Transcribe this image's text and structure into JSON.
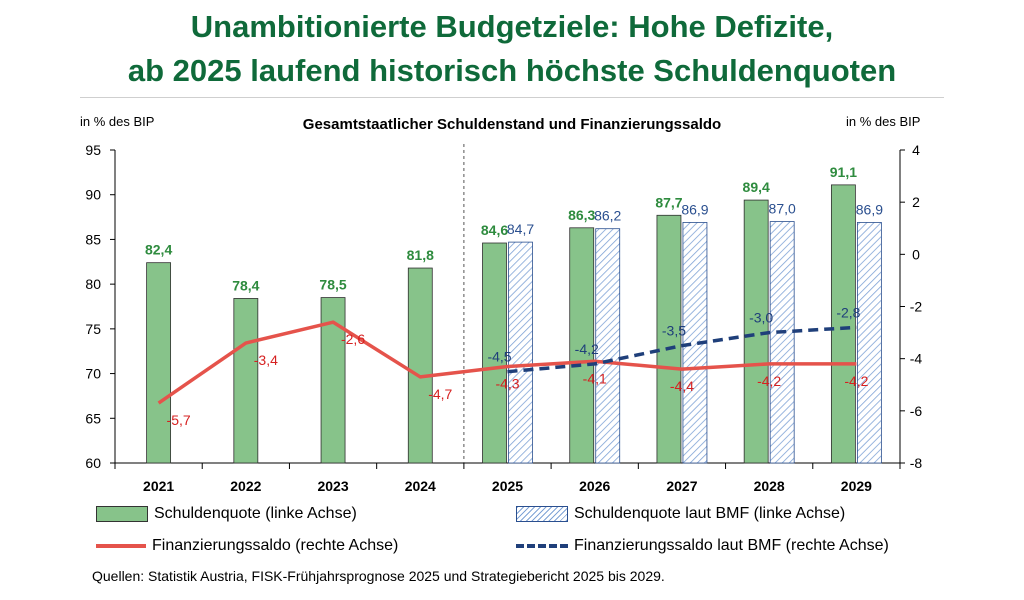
{
  "title": {
    "line1": "Unambitionierte Budgetziele: Hohe Defizite,",
    "line2": "ab 2025 laufend historisch höchste Schuldenquoten"
  },
  "left_axis_unit": "in % des BIP",
  "right_axis_unit": "in % des BIP",
  "legend": {
    "schuldenquote": "Schuldenquote (linke Achse)",
    "schuldenquote_bmf": "Schuldenquote laut BMF (linke Achse)",
    "saldo": "Finanzierungssaldo (rechte Achse)",
    "saldo_bmf": "Finanzierungssaldo laut BMF (rechte Achse)"
  },
  "source": "Quellen: Statistik Austria, FISK-Frühjahrsprognose 2025 und Strategiebericht 2025 bis 2029.",
  "colors": {
    "bar_green": "#87c38a",
    "bar_green_label": "#2e8b3e",
    "bmf_label": "#2a4f8f",
    "saldo_red": "#e5534b",
    "saldo_red_label": "#d62020",
    "saldo_bmf": "#1f3f7a"
  },
  "chart_data": {
    "type": "bar",
    "title": "Gesamtstaatlicher Schuldenstand und Finanzierungssaldo",
    "categories": [
      "2021",
      "2022",
      "2023",
      "2024",
      "2025",
      "2026",
      "2027",
      "2028",
      "2029"
    ],
    "left_axis": {
      "ylim": [
        60,
        95
      ],
      "ticks": [
        60,
        65,
        70,
        75,
        80,
        85,
        90,
        95
      ]
    },
    "right_axis": {
      "ylim": [
        -8,
        4
      ],
      "ticks": [
        -8,
        -6,
        -4,
        -2,
        0,
        2,
        4
      ]
    },
    "forecast_divider_between": [
      "2024",
      "2025"
    ],
    "grid": false,
    "series": [
      {
        "name": "Schuldenquote (linke Achse)",
        "kind": "bar",
        "axis": "left",
        "values": [
          82.4,
          78.4,
          78.5,
          81.8,
          84.6,
          86.3,
          87.7,
          89.4,
          91.1
        ],
        "labels": [
          "82,4",
          "78,4",
          "78,5",
          "81,8",
          "84,6",
          "86,3",
          "87,7",
          "89,4",
          "91,1"
        ]
      },
      {
        "name": "Schuldenquote laut BMF (linke Achse)",
        "kind": "bar-hatched",
        "axis": "left",
        "values": [
          null,
          null,
          null,
          null,
          84.7,
          86.2,
          86.9,
          87.0,
          86.9
        ],
        "labels": [
          null,
          null,
          null,
          null,
          "84,7",
          "86,2",
          "86,9",
          "87,0",
          "86,9"
        ]
      },
      {
        "name": "Finanzierungssaldo (rechte Achse)",
        "kind": "line",
        "axis": "right",
        "values": [
          -5.7,
          -3.4,
          -2.6,
          -4.7,
          -4.3,
          -4.1,
          -4.4,
          -4.2,
          -4.2
        ],
        "labels": [
          "-5,7",
          "-3,4",
          "-2,6",
          "-4,7",
          "-4,3",
          "-4,1",
          "-4,4",
          "-4,2",
          "-4,2"
        ]
      },
      {
        "name": "Finanzierungssaldo laut BMF (rechte Achse)",
        "kind": "line-dashed",
        "axis": "right",
        "values": [
          null,
          null,
          null,
          null,
          -4.5,
          -4.2,
          -3.5,
          -3.0,
          -2.8
        ],
        "labels": [
          null,
          null,
          null,
          null,
          "-4,5",
          "-4,2",
          "-3,5",
          "-3,0",
          "-2,8"
        ]
      }
    ]
  }
}
